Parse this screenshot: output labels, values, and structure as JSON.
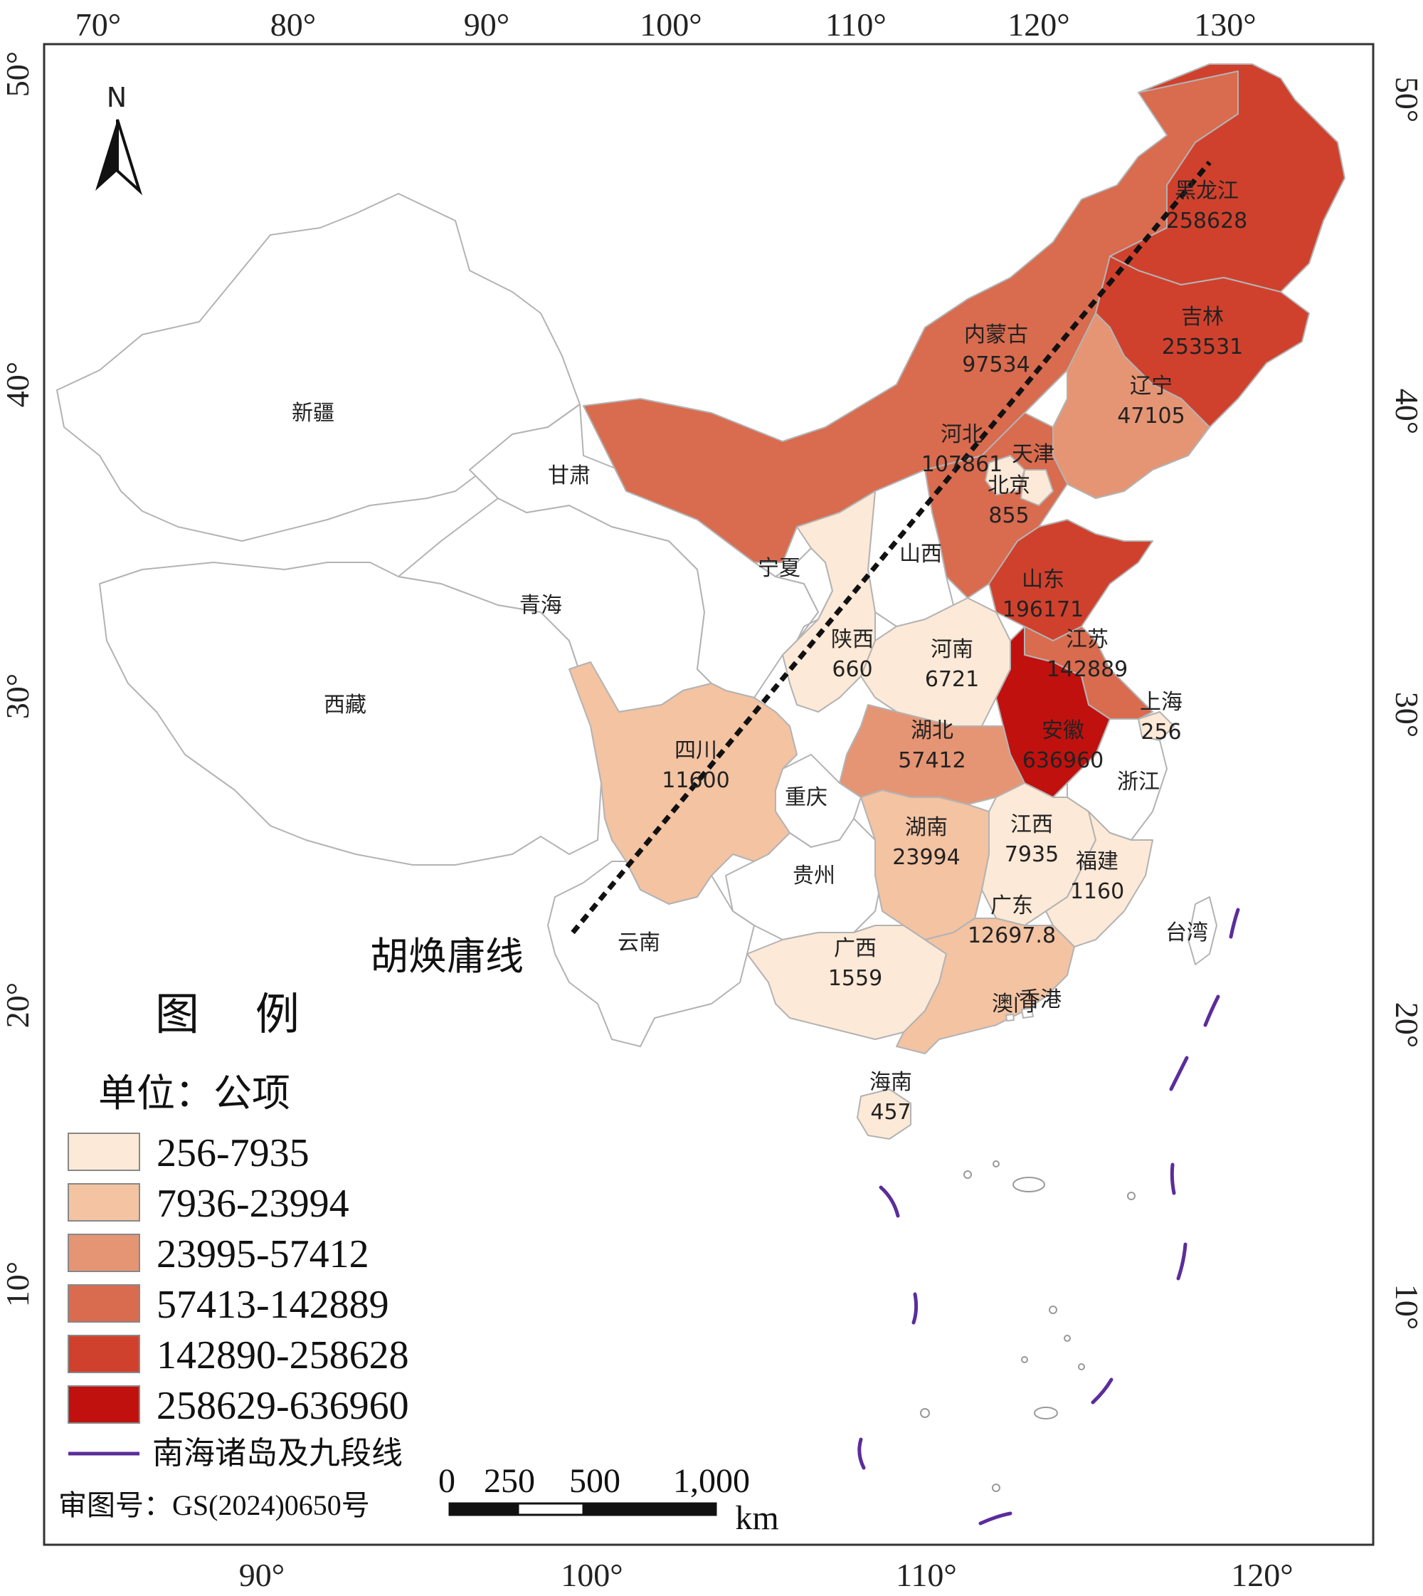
{
  "map": {
    "top_ticks": [
      "70°",
      "80°",
      "90°",
      "100°",
      "110°",
      "120°",
      "130°"
    ],
    "bottom_ticks": [
      "90°",
      "100°",
      "110°",
      "120°"
    ],
    "left_ticks": [
      "50°",
      "40°",
      "30°",
      "20°",
      "10°"
    ],
    "right_ticks": [
      "50°",
      "40°",
      "30°",
      "20°",
      "10°"
    ],
    "north_label": "N",
    "hu_line_label": "胡焕庸线",
    "legend": {
      "title": "图    例",
      "unit": "单位：公项",
      "classes": [
        {
          "range": "256-7935",
          "color": "#fde9d7"
        },
        {
          "range": "7936-23994",
          "color": "#f3c3a2"
        },
        {
          "range": "23995-57412",
          "color": "#e59574"
        },
        {
          "range": "57413-142889",
          "color": "#d96b4f"
        },
        {
          "range": "142890-258628",
          "color": "#d0412d"
        },
        {
          "range": "258629-636960",
          "color": "#c0110e"
        }
      ],
      "line_item": {
        "label": "南海诸岛及九段线",
        "color": "#5b2d9a"
      }
    },
    "scale_bar": {
      "labels": [
        "0",
        "250",
        "500",
        "1,000"
      ],
      "unit": "km"
    },
    "approval_number": "审图号：GS(2024)0650号",
    "provinces": [
      {
        "key": "xinjiang",
        "name": "新疆",
        "value": "",
        "class": -1
      },
      {
        "key": "xizang",
        "name": "西藏",
        "value": "",
        "class": -1
      },
      {
        "key": "qinghai",
        "name": "青海",
        "value": "",
        "class": -1
      },
      {
        "key": "gansu",
        "name": "甘肃",
        "value": "",
        "class": -1
      },
      {
        "key": "neimenggu",
        "name": "内蒙古",
        "value": "97534",
        "class": 3
      },
      {
        "key": "heilongjiang",
        "name": "黑龙江",
        "value": "258628",
        "class": 4
      },
      {
        "key": "jilin",
        "name": "吉林",
        "value": "253531",
        "class": 4
      },
      {
        "key": "liaoning",
        "name": "辽宁",
        "value": "47105",
        "class": 2
      },
      {
        "key": "hebei",
        "name": "河北",
        "value": "107861",
        "class": 3
      },
      {
        "key": "tianjin",
        "name": "天津",
        "value": "",
        "class": 0
      },
      {
        "key": "beijing",
        "name": "北京",
        "value": "855",
        "class": 0
      },
      {
        "key": "shandong",
        "name": "山东",
        "value": "196171",
        "class": 4
      },
      {
        "key": "jiangsu",
        "name": "江苏",
        "value": "142889",
        "class": 3
      },
      {
        "key": "shanghai",
        "name": "上海",
        "value": "256",
        "class": 0
      },
      {
        "key": "anhui",
        "name": "安徽",
        "value": "636960",
        "class": 5
      },
      {
        "key": "zhejiang",
        "name": "浙江",
        "value": "",
        "class": -1
      },
      {
        "key": "ningxia",
        "name": "宁夏",
        "value": "",
        "class": -1
      },
      {
        "key": "shanxi",
        "name": "山西",
        "value": "",
        "class": -1
      },
      {
        "key": "shaanxi",
        "name": "陕西",
        "value": "660",
        "class": 0
      },
      {
        "key": "henan",
        "name": "河南",
        "value": "6721",
        "class": 0
      },
      {
        "key": "hubei",
        "name": "湖北",
        "value": "57412",
        "class": 2
      },
      {
        "key": "sichuan",
        "name": "四川",
        "value": "11600",
        "class": 1
      },
      {
        "key": "chongqing",
        "name": "重庆",
        "value": "",
        "class": -1
      },
      {
        "key": "guizhou",
        "name": "贵州",
        "value": "",
        "class": -1
      },
      {
        "key": "yunnan",
        "name": "云南",
        "value": "",
        "class": -1
      },
      {
        "key": "hunan",
        "name": "湖南",
        "value": "23994",
        "class": 1
      },
      {
        "key": "jiangxi",
        "name": "江西",
        "value": "7935",
        "class": 0
      },
      {
        "key": "fujian",
        "name": "福建",
        "value": "1160",
        "class": 0
      },
      {
        "key": "guangdong",
        "name": "广东",
        "value": "12697.8",
        "class": 1
      },
      {
        "key": "guangxi",
        "name": "广西",
        "value": "1559",
        "class": 0
      },
      {
        "key": "hainan",
        "name": "海南",
        "value": "457",
        "class": 0
      },
      {
        "key": "taiwan",
        "name": "台湾",
        "value": "",
        "class": -1
      },
      {
        "key": "xianggang",
        "name": "香港",
        "value": "",
        "class": -1
      },
      {
        "key": "aomen",
        "name": "澳门",
        "value": "",
        "class": -1
      }
    ]
  }
}
